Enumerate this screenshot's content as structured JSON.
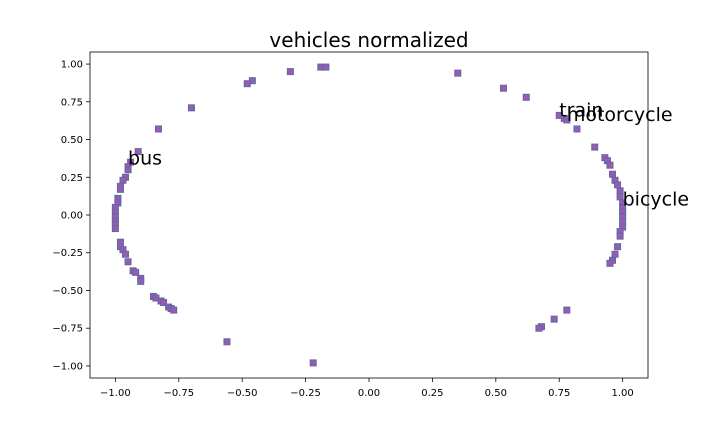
{
  "chart_data": {
    "type": "scatter",
    "title": "vehicles normalized",
    "xlabel": "",
    "ylabel": "",
    "xlim": [
      -1.1,
      1.1
    ],
    "ylim": [
      -1.08,
      1.08
    ],
    "xticks": [
      -1.0,
      -0.75,
      -0.5,
      -0.25,
      0.0,
      0.25,
      0.5,
      0.75,
      1.0
    ],
    "yticks": [
      -1.0,
      -0.75,
      -0.5,
      -0.25,
      0.0,
      0.25,
      0.5,
      0.75,
      1.0
    ],
    "xtick_labels": [
      "−1.00",
      "−0.75",
      "−0.50",
      "−0.25",
      "0.00",
      "0.25",
      "0.50",
      "0.75",
      "1.00"
    ],
    "ytick_labels": [
      "−1.00",
      "−0.75",
      "−0.50",
      "−0.25",
      "0.00",
      "0.25",
      "0.50",
      "0.75",
      "1.00"
    ],
    "grid": false,
    "marker": "square",
    "colors": {
      "marker_edge": "#5b6b9e",
      "marker_fill": "#9b59b6",
      "axis": "#000000",
      "text": "#000000"
    },
    "points": [
      [
        -0.19,
        0.98
      ],
      [
        -0.17,
        0.98
      ],
      [
        -0.31,
        0.95
      ],
      [
        -0.46,
        0.89
      ],
      [
        -0.48,
        0.87
      ],
      [
        -0.7,
        0.71
      ],
      [
        -0.83,
        0.57
      ],
      [
        -0.91,
        0.42
      ],
      [
        -0.94,
        0.35
      ],
      [
        -0.95,
        0.32
      ],
      [
        -0.95,
        0.3
      ],
      [
        -0.96,
        0.25
      ],
      [
        -0.97,
        0.23
      ],
      [
        -0.98,
        0.19
      ],
      [
        -0.98,
        0.17
      ],
      [
        -0.99,
        0.11
      ],
      [
        -0.99,
        0.08
      ],
      [
        -1.0,
        0.05
      ],
      [
        -1.0,
        0.02
      ],
      [
        -1.0,
        -0.01
      ],
      [
        -1.0,
        -0.04
      ],
      [
        -1.0,
        -0.06
      ],
      [
        -1.0,
        -0.09
      ],
      [
        -0.98,
        -0.18
      ],
      [
        -0.98,
        -0.21
      ],
      [
        -0.97,
        -0.23
      ],
      [
        -0.96,
        -0.26
      ],
      [
        -0.95,
        -0.31
      ],
      [
        -0.93,
        -0.37
      ],
      [
        -0.92,
        -0.38
      ],
      [
        -0.9,
        -0.42
      ],
      [
        -0.9,
        -0.44
      ],
      [
        -0.85,
        -0.54
      ],
      [
        -0.84,
        -0.55
      ],
      [
        -0.82,
        -0.57
      ],
      [
        -0.81,
        -0.58
      ],
      [
        -0.79,
        -0.61
      ],
      [
        -0.78,
        -0.62
      ],
      [
        -0.77,
        -0.63
      ],
      [
        -0.56,
        -0.84
      ],
      [
        -0.22,
        -0.98
      ],
      [
        0.35,
        0.94
      ],
      [
        0.53,
        0.84
      ],
      [
        0.62,
        0.78
      ],
      [
        0.75,
        0.66
      ],
      [
        0.77,
        0.64
      ],
      [
        0.78,
        0.63
      ],
      [
        0.82,
        0.57
      ],
      [
        0.89,
        0.45
      ],
      [
        0.93,
        0.38
      ],
      [
        0.94,
        0.36
      ],
      [
        0.95,
        0.33
      ],
      [
        0.96,
        0.27
      ],
      [
        0.97,
        0.23
      ],
      [
        0.98,
        0.2
      ],
      [
        0.99,
        0.16
      ],
      [
        0.99,
        0.12
      ],
      [
        1.0,
        0.08
      ],
      [
        1.0,
        0.05
      ],
      [
        1.0,
        0.02
      ],
      [
        1.0,
        -0.01
      ],
      [
        1.0,
        -0.04
      ],
      [
        1.0,
        -0.08
      ],
      [
        0.99,
        -0.11
      ],
      [
        0.99,
        -0.14
      ],
      [
        0.98,
        -0.21
      ],
      [
        0.97,
        -0.26
      ],
      [
        0.96,
        -0.3
      ],
      [
        0.95,
        -0.32
      ],
      [
        0.78,
        -0.63
      ],
      [
        0.73,
        -0.69
      ],
      [
        0.68,
        -0.74
      ],
      [
        0.67,
        -0.75
      ]
    ],
    "annotations": [
      {
        "text": "train",
        "x": 0.75,
        "y": 0.66
      },
      {
        "text": "motorcycle",
        "x": 0.78,
        "y": 0.63
      },
      {
        "text": "bus",
        "x": -0.95,
        "y": 0.34
      },
      {
        "text": "bicycle",
        "x": 1.0,
        "y": 0.07
      }
    ]
  }
}
